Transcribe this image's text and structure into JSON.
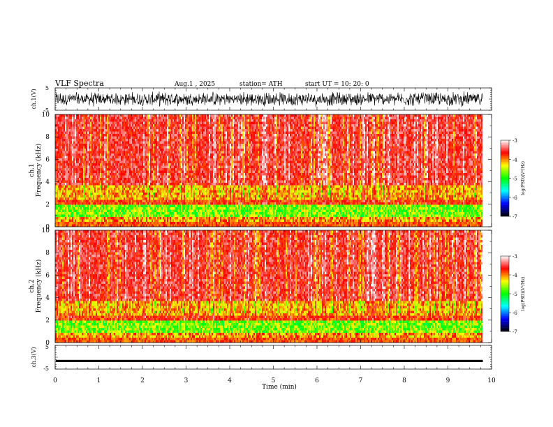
{
  "header": {
    "title": "VLF  Spectra",
    "date": "Aug.1   , 2025",
    "station": "station= ATH",
    "start": "start  UT  =    10: 20: 0"
  },
  "chart_data": [
    {
      "type": "line",
      "panel": "ch1-waveform",
      "ylabel": "ch.1(V)",
      "yticks": [
        "5",
        "-5"
      ],
      "ylim": [
        -5,
        5
      ],
      "xlim": [
        0,
        10
      ],
      "data_extent_min": 9.8,
      "description_of_values": "dense noise waveform, amplitude about ±3 V"
    },
    {
      "type": "heatmap",
      "panel": "ch1-spectrogram",
      "ylabel_top": "ch.1",
      "ylabel": "Frequency  (kHz)",
      "yticks": [
        "0",
        "2",
        "4",
        "6",
        "8",
        "10"
      ],
      "ylim": [
        0,
        10
      ],
      "xlim": [
        0,
        10
      ],
      "data_extent_min": 9.8,
      "colorbar": {
        "label": "log(PSD)(V²/Hz)",
        "ticks": [
          "-3",
          "-4",
          "-5",
          "-6",
          "-7"
        ],
        "range": [
          -7,
          -3
        ]
      }
    },
    {
      "type": "heatmap",
      "panel": "ch2-spectrogram",
      "ylabel_top": "ch.2",
      "ylabel": "Frequency  (kHz)",
      "yticks": [
        "0",
        "2",
        "4",
        "6",
        "8",
        "10"
      ],
      "ylim": [
        0,
        10
      ],
      "xlim": [
        0,
        10
      ],
      "data_extent_min": 9.8,
      "colorbar": {
        "label": "log(PSD)(V²/Hz)",
        "ticks": [
          "-3",
          "-4",
          "-5",
          "-6",
          "-7"
        ],
        "range": [
          -7,
          -3
        ]
      }
    },
    {
      "type": "line",
      "panel": "ch3-waveform",
      "ylabel": "ch.3(V)",
      "yticks": [
        "5",
        "-5"
      ],
      "ylim": [
        -5,
        5
      ],
      "xlim": [
        0,
        10
      ],
      "data_extent_min": 9.8,
      "baseline_value": -1.6
    }
  ],
  "xaxis": {
    "label": "Time  (min)",
    "ticks": [
      "0",
      "1",
      "2",
      "3",
      "4",
      "5",
      "6",
      "7",
      "8",
      "9",
      "10"
    ]
  },
  "colors": {
    "background": "#ffffff",
    "waveform": "#000000",
    "colormap": [
      "#000000",
      "#0000ff",
      "#00ffff",
      "#00ff00",
      "#ffff00",
      "#ff0000",
      "#ffffff"
    ]
  }
}
